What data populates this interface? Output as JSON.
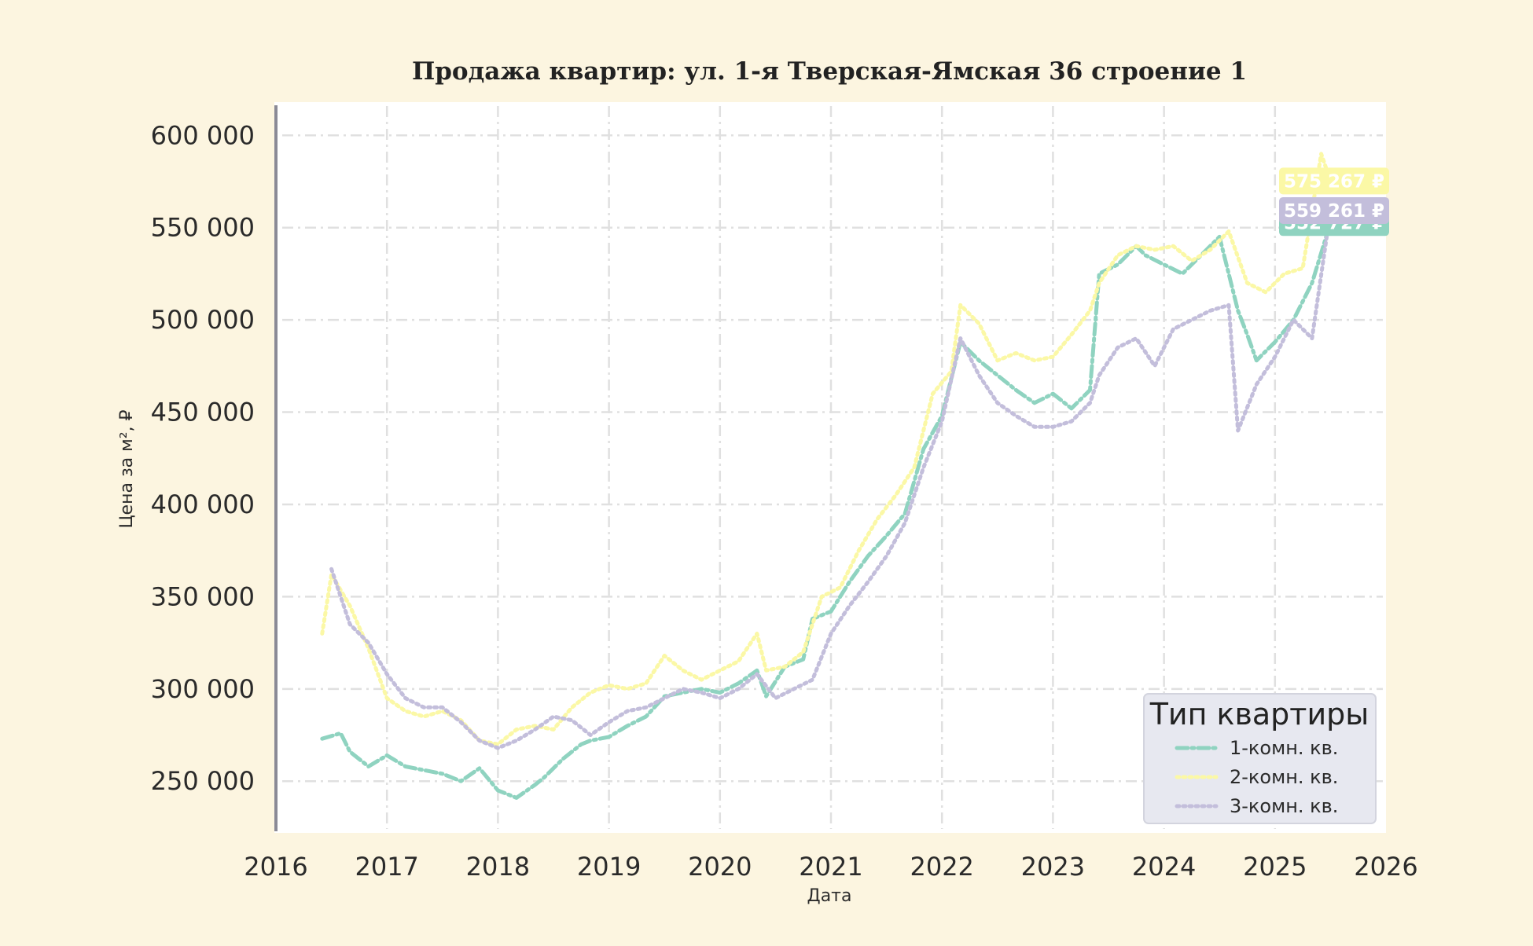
{
  "colors": {
    "background": "#fcf5e0",
    "plot_background": "#ffffff",
    "grid": "#e0e0e0",
    "left_spine": "#8a8a96",
    "series_1": "#8fd3c0",
    "series_2": "#fbf8a6",
    "series_3": "#c3bedb",
    "legend_background": "#e7e8f0"
  },
  "chart_data": {
    "type": "line",
    "title": "Продажа квартир: ул. 1-я Тверская-Ямская 36 строение 1",
    "xlabel": "Дата",
    "ylabel": "Цена за м², ₽",
    "xlim": [
      "2016-01-01",
      "2026-01-01"
    ],
    "ylim": [
      222000,
      618000
    ],
    "x_ticks": [
      "2016",
      "2017",
      "2018",
      "2019",
      "2020",
      "2021",
      "2022",
      "2023",
      "2024",
      "2025",
      "2026"
    ],
    "y_ticks": [
      {
        "value": 250000,
        "label": "250 000"
      },
      {
        "value": 300000,
        "label": "300 000"
      },
      {
        "value": 350000,
        "label": "350 000"
      },
      {
        "value": 400000,
        "label": "400 000"
      },
      {
        "value": 450000,
        "label": "450 000"
      },
      {
        "value": 500000,
        "label": "500 000"
      },
      {
        "value": 550000,
        "label": "550 000"
      },
      {
        "value": 600000,
        "label": "600 000"
      }
    ],
    "grid": true,
    "legend": {
      "title": "Тип квартиры",
      "placement": "bottom-right"
    },
    "series": [
      {
        "name": "1-комн. кв.",
        "color": "#8fd3c0",
        "style": "dashdot",
        "end_label": "552 727 ₽",
        "x": [
          "2016-06",
          "2016-08",
          "2016-09",
          "2016-11",
          "2017-01",
          "2017-03",
          "2017-05",
          "2017-07",
          "2017-09",
          "2017-11",
          "2018-01",
          "2018-03",
          "2018-05",
          "2018-06",
          "2018-08",
          "2018-10",
          "2018-11",
          "2019-01",
          "2019-03",
          "2019-05",
          "2019-07",
          "2019-09",
          "2019-11",
          "2020-01",
          "2020-03",
          "2020-05",
          "2020-06",
          "2020-08",
          "2020-10",
          "2020-11",
          "2021-01",
          "2021-03",
          "2021-05",
          "2021-07",
          "2021-09",
          "2021-11",
          "2022-01",
          "2022-03",
          "2022-05",
          "2022-07",
          "2022-09",
          "2022-11",
          "2023-01",
          "2023-03",
          "2023-05",
          "2023-06",
          "2023-08",
          "2023-10",
          "2023-11",
          "2024-01",
          "2024-03",
          "2024-05",
          "2024-07",
          "2024-09",
          "2024-10",
          "2024-11",
          "2025-01",
          "2025-03",
          "2025-05",
          "2025-07"
        ],
        "y": [
          273000,
          276000,
          266000,
          258000,
          264000,
          258000,
          256000,
          254000,
          250000,
          257000,
          245000,
          241000,
          248000,
          252000,
          262000,
          270000,
          272000,
          274000,
          280000,
          285000,
          296000,
          298000,
          300000,
          298000,
          303000,
          310000,
          296000,
          312000,
          316000,
          338000,
          342000,
          358000,
          372000,
          383000,
          395000,
          430000,
          448000,
          488000,
          478000,
          470000,
          462000,
          455000,
          460000,
          452000,
          462000,
          525000,
          530000,
          540000,
          535000,
          530000,
          525000,
          535000,
          545000,
          505000,
          492000,
          478000,
          488000,
          500000,
          520000,
          552727
        ]
      },
      {
        "name": "2-комн. кв.",
        "color": "#fbf8a6",
        "style": "dotted",
        "end_label": "575 267 ₽",
        "x": [
          "2016-06",
          "2016-07",
          "2016-09",
          "2016-11",
          "2017-01",
          "2017-03",
          "2017-05",
          "2017-07",
          "2017-09",
          "2017-11",
          "2018-01",
          "2018-03",
          "2018-05",
          "2018-07",
          "2018-09",
          "2018-11",
          "2019-01",
          "2019-03",
          "2019-05",
          "2019-07",
          "2019-09",
          "2019-11",
          "2020-01",
          "2020-03",
          "2020-05",
          "2020-06",
          "2020-08",
          "2020-10",
          "2020-12",
          "2021-02",
          "2021-04",
          "2021-06",
          "2021-08",
          "2021-10",
          "2021-12",
          "2022-02",
          "2022-03",
          "2022-05",
          "2022-07",
          "2022-09",
          "2022-11",
          "2023-01",
          "2023-03",
          "2023-05",
          "2023-06",
          "2023-08",
          "2023-10",
          "2023-12",
          "2024-02",
          "2024-04",
          "2024-06",
          "2024-08",
          "2024-10",
          "2024-12",
          "2025-02",
          "2025-04",
          "2025-06",
          "2025-07"
        ],
        "y": [
          330000,
          362000,
          345000,
          322000,
          295000,
          288000,
          285000,
          288000,
          283000,
          272000,
          270000,
          278000,
          280000,
          278000,
          290000,
          298000,
          302000,
          300000,
          303000,
          318000,
          310000,
          305000,
          310000,
          315000,
          330000,
          310000,
          312000,
          320000,
          350000,
          355000,
          375000,
          392000,
          405000,
          420000,
          460000,
          472000,
          508000,
          498000,
          478000,
          482000,
          478000,
          480000,
          492000,
          505000,
          520000,
          535000,
          540000,
          538000,
          540000,
          532000,
          538000,
          548000,
          520000,
          515000,
          525000,
          528000,
          590000,
          575267
        ]
      },
      {
        "name": "3-комн. кв.",
        "color": "#c3bedb",
        "style": "dotted",
        "end_label": "559 261 ₽",
        "x": [
          "2016-07",
          "2016-09",
          "2016-11",
          "2017-01",
          "2017-03",
          "2017-05",
          "2017-07",
          "2017-09",
          "2017-11",
          "2018-01",
          "2018-03",
          "2018-05",
          "2018-07",
          "2018-09",
          "2018-11",
          "2019-01",
          "2019-03",
          "2019-05",
          "2019-07",
          "2019-09",
          "2019-11",
          "2020-01",
          "2020-03",
          "2020-05",
          "2020-07",
          "2020-09",
          "2020-11",
          "2021-01",
          "2021-03",
          "2021-05",
          "2021-07",
          "2021-09",
          "2021-11",
          "2022-01",
          "2022-03",
          "2022-05",
          "2022-07",
          "2022-09",
          "2022-11",
          "2023-01",
          "2023-03",
          "2023-05",
          "2023-06",
          "2023-08",
          "2023-10",
          "2023-12",
          "2024-02",
          "2024-04",
          "2024-06",
          "2024-08",
          "2024-09",
          "2024-11",
          "2025-01",
          "2025-03",
          "2025-05",
          "2025-07"
        ],
        "y": [
          365000,
          335000,
          325000,
          308000,
          295000,
          290000,
          290000,
          282000,
          272000,
          268000,
          272000,
          278000,
          285000,
          283000,
          275000,
          282000,
          288000,
          290000,
          295000,
          300000,
          298000,
          295000,
          300000,
          308000,
          295000,
          300000,
          305000,
          330000,
          345000,
          358000,
          372000,
          390000,
          420000,
          445000,
          490000,
          470000,
          455000,
          448000,
          442000,
          442000,
          445000,
          455000,
          470000,
          485000,
          490000,
          475000,
          495000,
          500000,
          505000,
          508000,
          440000,
          465000,
          480000,
          500000,
          490000,
          559261
        ]
      }
    ]
  }
}
